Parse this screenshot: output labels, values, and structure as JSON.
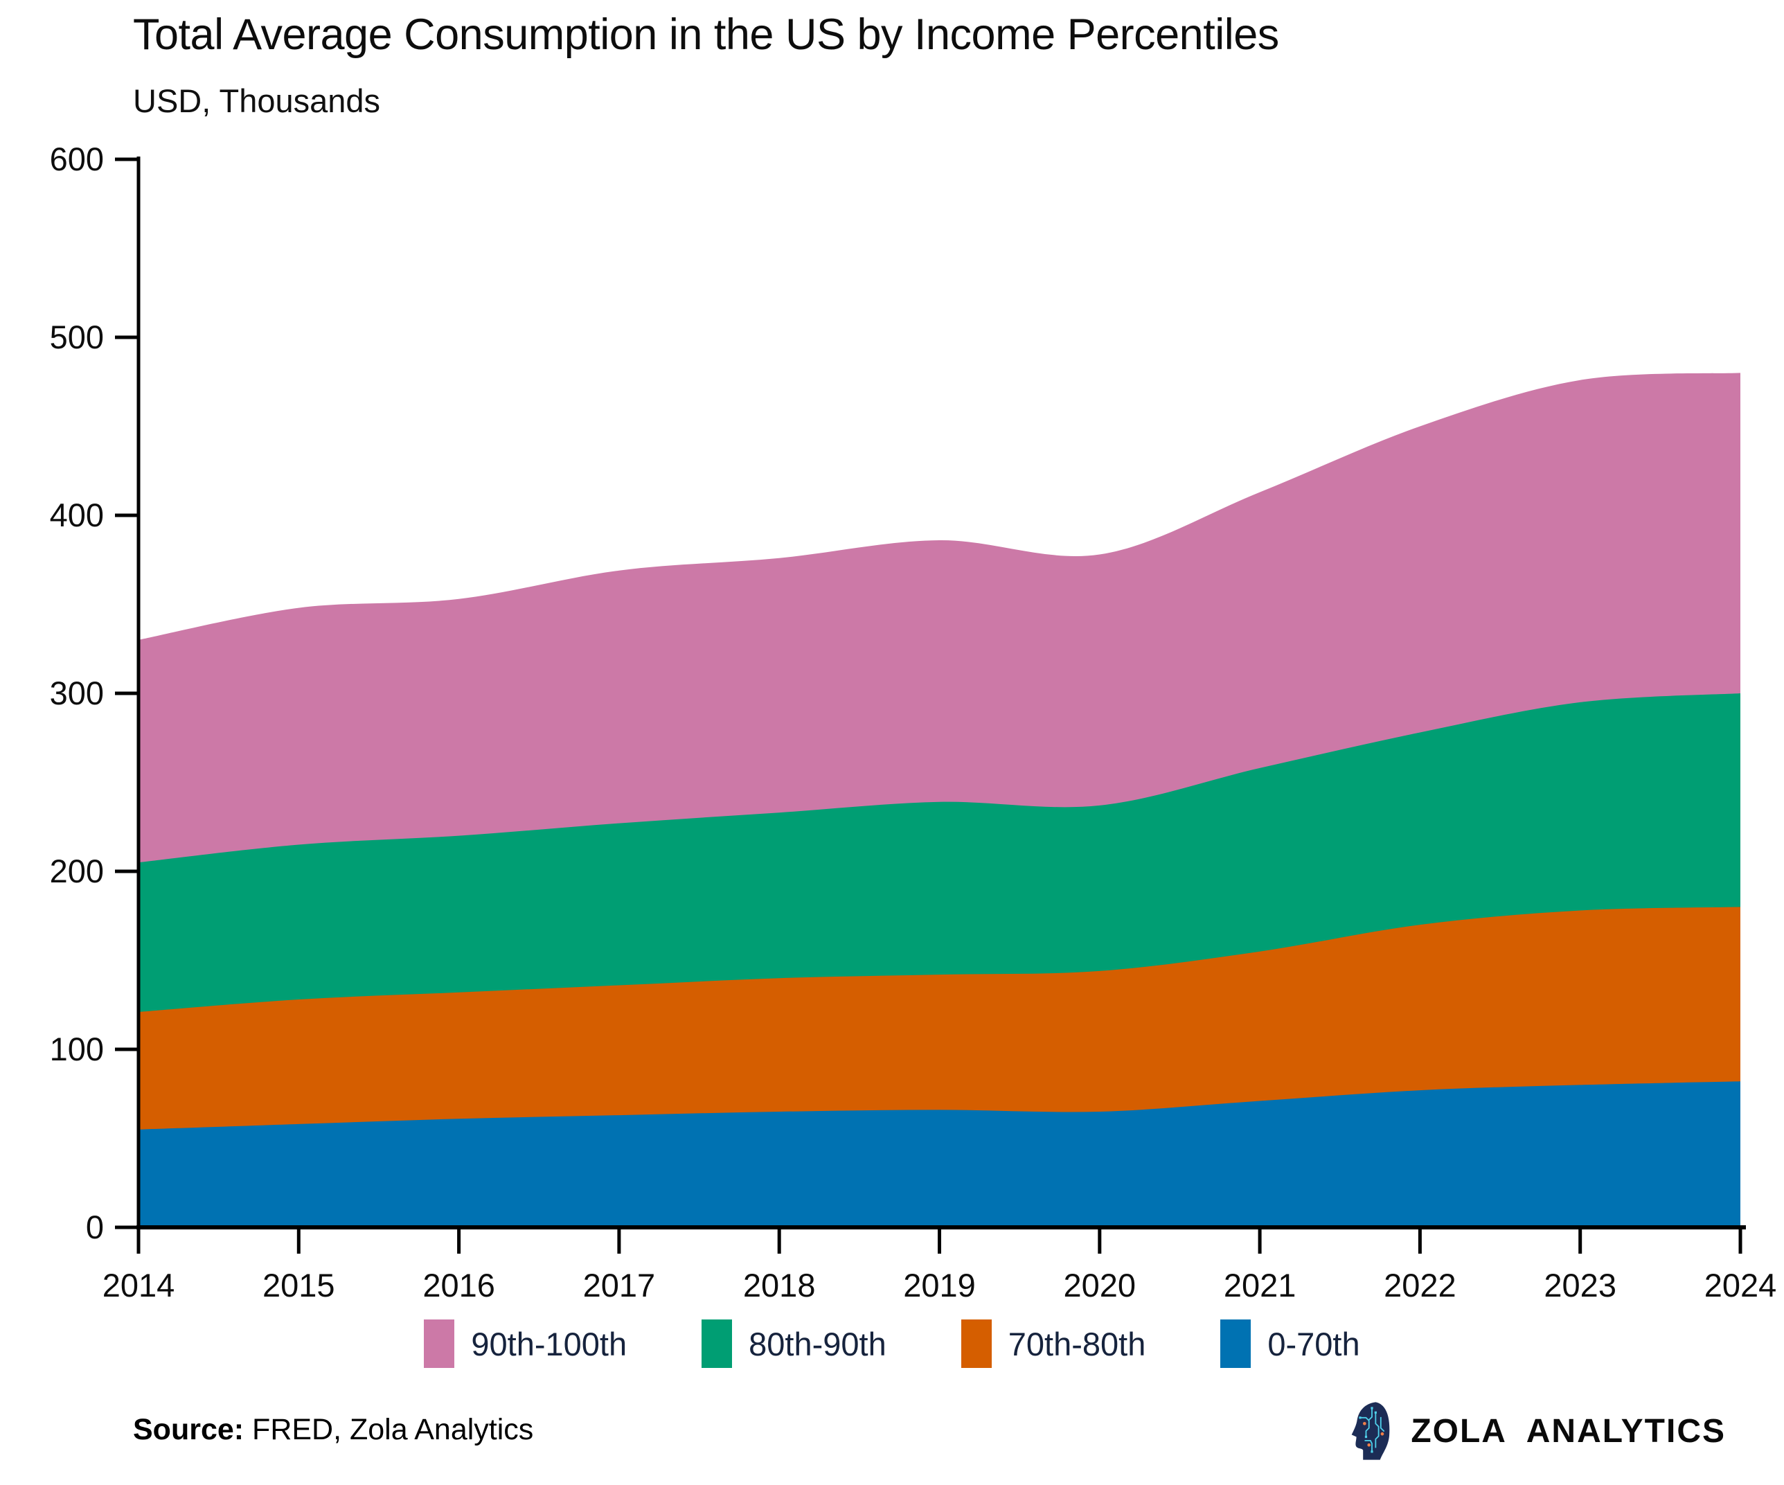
{
  "chart_data": {
    "type": "area",
    "stacked": true,
    "title": "Total Average Consumption in the US by Income Percentiles",
    "subtitle": "USD, Thousands",
    "x": [
      2014,
      2015,
      2016,
      2017,
      2018,
      2019,
      2020,
      2021,
      2022,
      2023,
      2024
    ],
    "xlim": [
      2014,
      2024
    ],
    "ylim": [
      0,
      600
    ],
    "yticks": [
      0,
      100,
      200,
      300,
      400,
      500,
      600
    ],
    "grid": false,
    "legend_position": "bottom",
    "series": [
      {
        "name": "0-70th",
        "color": "#0072B2",
        "values": [
          55,
          58,
          61,
          63,
          65,
          66,
          65,
          71,
          77,
          80,
          82
        ]
      },
      {
        "name": "70th-80th",
        "color": "#D55E00",
        "values": [
          66,
          70,
          71,
          73,
          75,
          76,
          79,
          84,
          93,
          98,
          98
        ]
      },
      {
        "name": "80th-90th",
        "color": "#009E73",
        "values": [
          84,
          87,
          88,
          91,
          93,
          97,
          93,
          103,
          108,
          117,
          120
        ]
      },
      {
        "name": "90th-100th",
        "color": "#CC79A7",
        "values": [
          125,
          133,
          133,
          142,
          143,
          147,
          141,
          155,
          172,
          181,
          180
        ]
      }
    ],
    "stacked_totals": [
      330,
      348,
      353,
      368,
      376,
      386,
      378,
      413,
      450,
      476,
      480
    ],
    "legend_order": [
      "90th-100th",
      "80th-90th",
      "70th-80th",
      "0-70th"
    ]
  },
  "source": {
    "label": "Source:",
    "text": " FRED, Zola Analytics"
  },
  "brand": {
    "name": "ZOLA ANALYTICS",
    "icon": "circuit-head-icon"
  }
}
